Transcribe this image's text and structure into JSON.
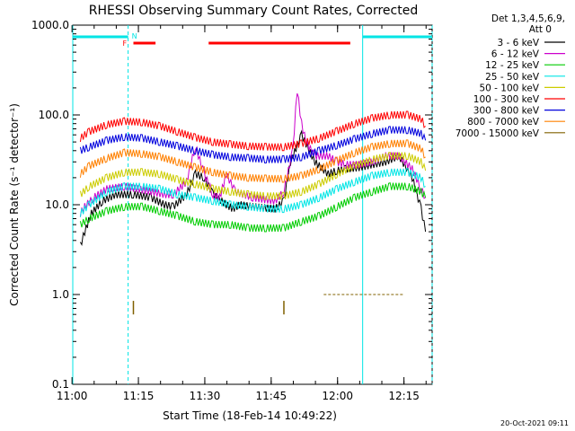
{
  "chart_data": {
    "type": "line",
    "title": "RHESSI Observing Summary Count Rates, Corrected",
    "xlabel": "Start Time (18-Feb-14 10:49:22)",
    "ylabel": "Corrected Count Rate (s⁻¹ detector⁻¹)",
    "y_scale": "log",
    "ylim": [
      0.1,
      1000
    ],
    "xlim_minutes": [
      10.8,
      92.0
    ],
    "x_ticks": [
      {
        "m": 10.63,
        "label": "11:00"
      },
      {
        "m": 25.63,
        "label": "11:15"
      },
      {
        "m": 40.63,
        "label": "11:30"
      },
      {
        "m": 55.63,
        "label": "11:45"
      },
      {
        "m": 70.63,
        "label": "12:00"
      },
      {
        "m": 85.63,
        "label": "12:15"
      }
    ],
    "y_ticks": [
      {
        "v": 0.1,
        "label": "0.1"
      },
      {
        "v": 1.0,
        "label": "1.0"
      },
      {
        "v": 10.0,
        "label": "10.0"
      },
      {
        "v": 100.0,
        "label": "100.0"
      },
      {
        "v": 1000.0,
        "label": "1000.0"
      }
    ],
    "legend_header": [
      "Det 1,3,4,5,6,9,",
      "Att 0"
    ],
    "legend_position": "right",
    "series": [
      {
        "name": "3 - 6 keV",
        "color": "#000000",
        "x": [
          0,
          1,
          2.5,
          5,
          8,
          12,
          16,
          19,
          21,
          24,
          26,
          28,
          30,
          33,
          34.5,
          36,
          39,
          44,
          46,
          47.5,
          50,
          53,
          56,
          58,
          60,
          63,
          66,
          69,
          72,
          75,
          77,
          78
        ],
        "y": [
          3.5,
          5,
          8,
          11,
          13,
          13,
          12,
          10,
          9.5,
          13,
          22,
          20,
          13,
          10,
          9,
          10,
          9.5,
          9,
          11,
          30,
          60,
          30,
          22,
          24,
          25,
          26,
          28,
          30,
          35,
          20,
          9,
          5
        ]
      },
      {
        "name": "6 - 12 keV",
        "color": "#cc00cc",
        "x": [
          0,
          1,
          3,
          6,
          10,
          13,
          16,
          19,
          21,
          24,
          26,
          28,
          30,
          31.5,
          33,
          35,
          39,
          44,
          46,
          48,
          49,
          50,
          51,
          53,
          56,
          58,
          60,
          63,
          66,
          69,
          72,
          75,
          77,
          78
        ],
        "y": [
          8,
          9.5,
          12,
          15,
          16,
          15,
          14,
          13,
          13,
          18,
          45,
          22,
          13,
          12,
          22,
          14,
          12,
          11,
          14,
          40,
          190,
          80,
          50,
          35,
          35,
          30,
          28,
          28,
          30,
          35,
          35,
          25,
          15,
          12
        ]
      },
      {
        "name": "12 - 25 keV",
        "color": "#00cc00",
        "x": [
          0,
          2,
          6,
          10,
          14,
          18,
          22,
          26,
          30,
          34,
          38,
          42,
          46,
          50,
          54,
          58,
          62,
          66,
          70,
          74,
          77,
          78
        ],
        "y": [
          6,
          7,
          8.5,
          9.5,
          9.5,
          8.5,
          7.5,
          6.5,
          6,
          6,
          5.5,
          5.5,
          5.5,
          6.5,
          7.5,
          9.5,
          12,
          14,
          16,
          16,
          14,
          12
        ]
      },
      {
        "name": "25 - 50 keV",
        "color": "#00e5e5",
        "x": [
          0,
          2,
          6,
          10,
          14,
          18,
          22,
          26,
          30,
          34,
          38,
          42,
          46,
          50,
          54,
          58,
          62,
          66,
          70,
          74,
          77,
          78
        ],
        "y": [
          8,
          10,
          14,
          16,
          16,
          15,
          13,
          12,
          11,
          10,
          9.5,
          9,
          9,
          10,
          12,
          15,
          18,
          21,
          23,
          23,
          20,
          16
        ]
      },
      {
        "name": "50 - 100 keV",
        "color": "#cccc00",
        "x": [
          0,
          2,
          6,
          10,
          14,
          18,
          22,
          26,
          30,
          34,
          38,
          42,
          46,
          50,
          54,
          58,
          62,
          66,
          70,
          74,
          77,
          78
        ],
        "y": [
          13,
          16,
          20,
          23,
          23,
          22,
          19,
          17,
          15,
          14,
          13,
          12.5,
          12.5,
          14,
          17,
          22,
          27,
          32,
          35,
          35,
          30,
          24
        ]
      },
      {
        "name": "100 - 300 keV",
        "color": "#ff0000",
        "x": [
          0,
          2,
          6,
          10,
          14,
          18,
          22,
          26,
          30,
          34,
          38,
          42,
          46,
          50,
          54,
          58,
          62,
          66,
          70,
          74,
          77,
          78
        ],
        "y": [
          55,
          65,
          78,
          85,
          83,
          75,
          65,
          56,
          50,
          47,
          45,
          44,
          44,
          48,
          55,
          66,
          80,
          92,
          100,
          100,
          90,
          75
        ]
      },
      {
        "name": "300 - 800 keV",
        "color": "#0000dd",
        "x": [
          0,
          2,
          6,
          10,
          14,
          18,
          22,
          26,
          30,
          34,
          38,
          42,
          46,
          50,
          54,
          58,
          62,
          66,
          70,
          74,
          77,
          78
        ],
        "y": [
          40,
          44,
          52,
          57,
          55,
          50,
          45,
          40,
          36,
          34,
          33,
          32,
          32,
          34,
          40,
          46,
          54,
          62,
          68,
          68,
          62,
          52
        ]
      },
      {
        "name": "800 - 7000 keV",
        "color": "#ff8000",
        "x": [
          0,
          2,
          6,
          10,
          14,
          18,
          22,
          26,
          30,
          34,
          38,
          42,
          46,
          50,
          54,
          58,
          62,
          66,
          70,
          74,
          77,
          78
        ],
        "y": [
          22,
          27,
          33,
          38,
          37,
          34,
          30,
          26,
          23,
          21,
          20,
          19.5,
          19.5,
          21,
          25,
          31,
          38,
          44,
          48,
          48,
          42,
          34
        ]
      },
      {
        "name": "7000 - 15000 keV",
        "color": "#806000",
        "x": [
          55,
          57,
          59,
          61,
          63,
          65,
          67,
          69,
          71,
          73
        ],
        "y": [
          1.0,
          1.0,
          1.0,
          1.0,
          1.0,
          1.0,
          1.0,
          1.0,
          1.0,
          1.0
        ]
      }
    ],
    "annotations": {
      "night_intervals": [
        [
          10.8,
          23.3
        ],
        [
          76.3,
          92.0
        ]
      ],
      "night_label": "N",
      "flare_intervals": [
        [
          24.5,
          29.5
        ],
        [
          41.5,
          73.5
        ]
      ],
      "flare_label": "F"
    },
    "grid": false
  },
  "timestamp": "20-Oct-2021 09:11"
}
